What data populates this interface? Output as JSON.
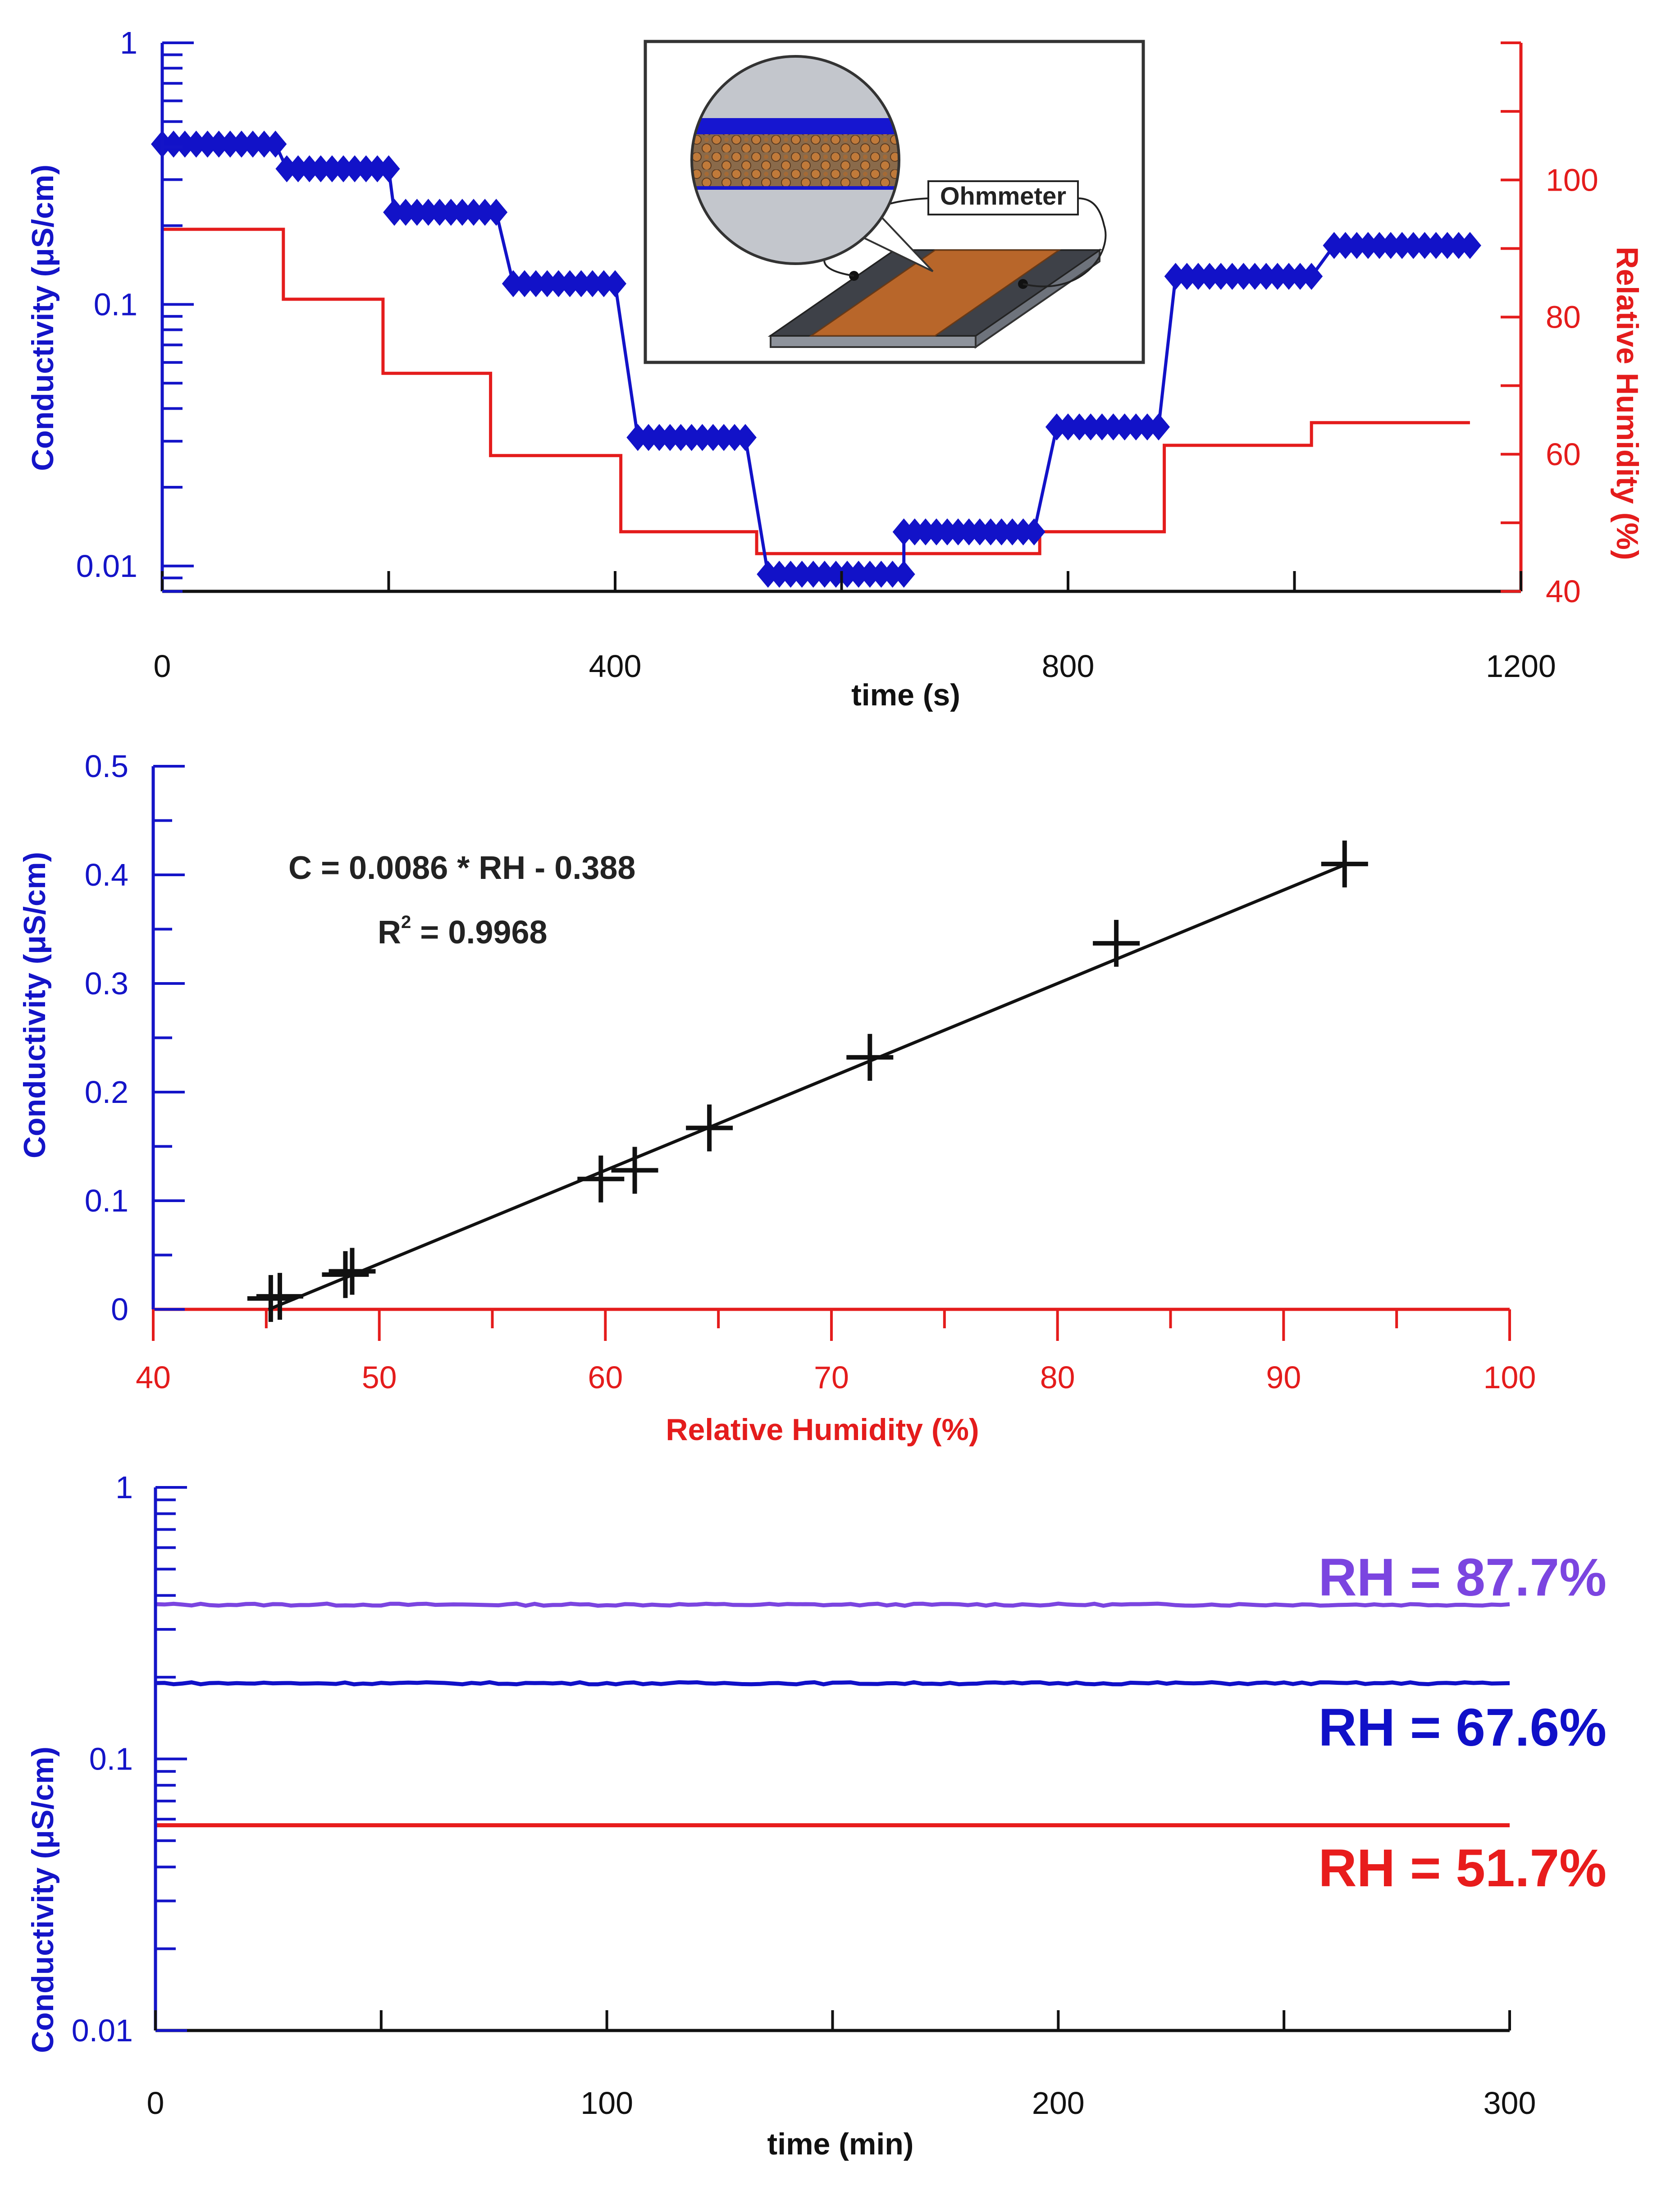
{
  "chart_data": [
    {
      "id": "chart1",
      "type": "line",
      "title": "",
      "xlabel": "time (s)",
      "ylabel_left": "Conductivity (μS/cm)",
      "ylabel_right": "Relative Humidity (%)",
      "xlim": [
        0,
        1200
      ],
      "ylim_left": [
        0.008,
        1
      ],
      "ylim_right": [
        40,
        120
      ],
      "yscale_left": "log",
      "x_ticks": [
        0,
        400,
        800,
        1200
      ],
      "x_tick_labels": [
        "0",
        "400",
        "800",
        "1200"
      ],
      "y_left_ticks": [
        0.01,
        0.1,
        1
      ],
      "y_left_tick_labels": [
        "0.01",
        "0.1",
        "1"
      ],
      "y_right_ticks": [
        40,
        60,
        80,
        100
      ],
      "y_right_tick_labels": [
        "40",
        "60",
        "80",
        "100"
      ],
      "series": [
        {
          "name": "Conductivity",
          "axis": "left",
          "color": "#1212c8",
          "marker": "diamond",
          "steps": [
            {
              "t0": 0,
              "t1": 100,
              "value": 0.41
            },
            {
              "t0": 110,
              "t1": 200,
              "value": 0.33
            },
            {
              "t0": 205,
              "t1": 295,
              "value": 0.225
            },
            {
              "t0": 310,
              "t1": 400,
              "value": 0.12
            },
            {
              "t0": 420,
              "t1": 515,
              "value": 0.031
            },
            {
              "t0": 535,
              "t1": 655,
              "value": 0.0093
            },
            {
              "t0": 655,
              "t1": 770,
              "value": 0.0135
            },
            {
              "t0": 790,
              "t1": 880,
              "value": 0.034
            },
            {
              "t0": 895,
              "t1": 1015,
              "value": 0.128
            },
            {
              "t0": 1035,
              "t1": 1155,
              "value": 0.168
            }
          ]
        },
        {
          "name": "Relative Humidity",
          "axis": "right",
          "color": "#e41c1c",
          "x": [
            0,
            107,
            107,
            195,
            195,
            290,
            290,
            405,
            405,
            525,
            525,
            655,
            655,
            775,
            775,
            885,
            885,
            1015,
            1015,
            1155
          ],
          "y": [
            92.8,
            92.8,
            82.6,
            82.6,
            71.8,
            71.8,
            59.8,
            59.8,
            48.7,
            48.7,
            45.5,
            45.5,
            45.5,
            45.5,
            48.7,
            48.7,
            61.3,
            61.3,
            64.6,
            64.6
          ]
        }
      ],
      "inset": {
        "label": "Ohmmeter"
      }
    },
    {
      "id": "chart2",
      "type": "scatter",
      "title": "",
      "xlabel": "Relative Humidity (%)",
      "ylabel": "Conductivity (μS/cm)",
      "xlim": [
        40,
        100
      ],
      "ylim": [
        0,
        0.5
      ],
      "x_ticks": [
        40,
        50,
        60,
        70,
        80,
        90,
        100
      ],
      "x_tick_labels": [
        "40",
        "50",
        "60",
        "70",
        "80",
        "90",
        "100"
      ],
      "y_ticks": [
        0,
        0.1,
        0.2,
        0.3,
        0.4,
        0.5
      ],
      "y_tick_labels": [
        "0",
        "0.1",
        "0.2",
        "0.3",
        "0.4",
        "0.5"
      ],
      "series": [
        {
          "name": "Measured",
          "marker": "plus",
          "color": "#111111",
          "x": [
            45.2,
            45.6,
            48.5,
            48.8,
            59.8,
            61.3,
            64.6,
            71.7,
            82.6,
            92.7
          ],
          "y": [
            0.01,
            0.012,
            0.032,
            0.035,
            0.12,
            0.128,
            0.167,
            0.232,
            0.337,
            0.41
          ]
        },
        {
          "name": "Linear fit",
          "type": "line",
          "color": "#111111",
          "slope": 0.0086,
          "intercept": -0.388,
          "x_range": [
            45.1,
            92.7
          ]
        }
      ],
      "annotations": {
        "equation": "C = 0.0086 * RH - 0.388",
        "r_squared_prefix": "R",
        "r_squared_exponent": "2",
        "r_squared_value": " = 0.9968"
      }
    },
    {
      "id": "chart3",
      "type": "line",
      "title": "",
      "xlabel": "time (min)",
      "ylabel": "Conductivity (μS/cm)",
      "xlim": [
        0,
        300
      ],
      "ylim": [
        0.01,
        1
      ],
      "yscale": "log",
      "x_ticks": [
        0,
        100,
        200,
        300
      ],
      "x_tick_labels": [
        "0",
        "100",
        "200",
        "300"
      ],
      "y_ticks": [
        0.01,
        0.1,
        1
      ],
      "y_tick_labels": [
        "0.01",
        "0.1",
        "1"
      ],
      "series": [
        {
          "name": "RH = 87.7%",
          "label": "RH = 87.7%",
          "value": 0.37,
          "color": "#7b45e0"
        },
        {
          "name": "RH = 67.6%",
          "label": "RH = 67.6%",
          "value": 0.19,
          "color": "#1010c8"
        },
        {
          "name": "RH = 51.7%",
          "label": "RH = 51.7%",
          "value": 0.057,
          "color": "#e81c1c"
        }
      ]
    }
  ]
}
